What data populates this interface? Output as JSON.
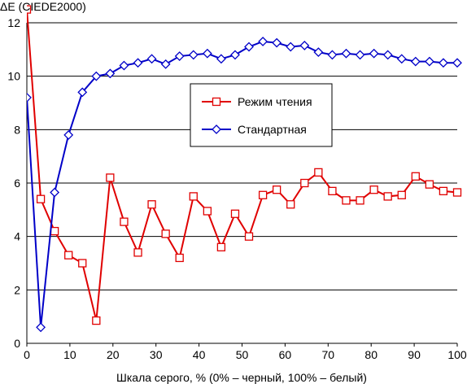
{
  "chart_data": {
    "type": "line",
    "ylabel": "ΔE (CIEDE2000)",
    "xlabel": "Шкала серого, % (0% – черный, 100% – белый)",
    "xlim": [
      0,
      100
    ],
    "ylim": [
      0,
      12
    ],
    "xticks": [
      0,
      10,
      20,
      30,
      40,
      50,
      60,
      70,
      80,
      90,
      100
    ],
    "yticks": [
      0,
      2,
      4,
      6,
      8,
      10,
      12
    ],
    "grid": "horizontal",
    "legend": "inside-upper-middle",
    "series": [
      {
        "name": "Режим чтения",
        "color": "#e00000",
        "marker": "square",
        "x": [
          0,
          3.23,
          6.45,
          9.68,
          12.9,
          16.13,
          19.35,
          22.58,
          25.81,
          29.03,
          32.26,
          35.48,
          38.71,
          41.94,
          45.16,
          48.39,
          51.61,
          54.84,
          58.06,
          61.29,
          64.52,
          67.74,
          70.97,
          74.19,
          77.42,
          80.65,
          83.87,
          87.1,
          90.32,
          93.55,
          96.77,
          100
        ],
        "y": [
          12.5,
          5.4,
          4.2,
          3.3,
          3.0,
          0.85,
          6.2,
          4.55,
          3.4,
          5.2,
          4.1,
          3.2,
          5.5,
          4.95,
          3.6,
          4.85,
          4.0,
          5.55,
          5.75,
          5.2,
          6.0,
          6.4,
          5.7,
          5.35,
          5.35,
          5.75,
          5.5,
          5.55,
          6.25,
          5.95,
          5.7,
          5.65
        ]
      },
      {
        "name": "Стандартная",
        "color": "#0000c8",
        "marker": "diamond",
        "x": [
          0,
          3.23,
          6.45,
          9.68,
          12.9,
          16.13,
          19.35,
          22.58,
          25.81,
          29.03,
          32.26,
          35.48,
          38.71,
          41.94,
          45.16,
          48.39,
          51.61,
          54.84,
          58.06,
          61.29,
          64.52,
          67.74,
          70.97,
          74.19,
          77.42,
          80.65,
          83.87,
          87.1,
          90.32,
          93.55,
          96.77,
          100
        ],
        "y": [
          9.2,
          0.6,
          5.65,
          7.8,
          9.4,
          10.0,
          10.1,
          10.4,
          10.5,
          10.65,
          10.45,
          10.75,
          10.8,
          10.85,
          10.65,
          10.8,
          11.1,
          11.3,
          11.25,
          11.1,
          11.15,
          10.9,
          10.8,
          10.85,
          10.8,
          10.85,
          10.8,
          10.65,
          10.55,
          10.55,
          10.5,
          10.5
        ]
      }
    ]
  }
}
